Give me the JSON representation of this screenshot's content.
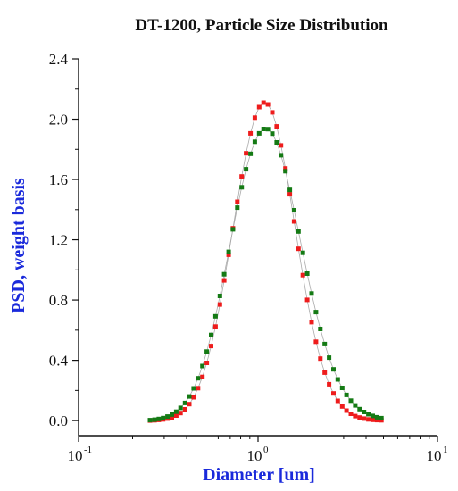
{
  "chart_data": {
    "type": "scatter",
    "title": "DT-1200, Particle Size Distribution",
    "xlabel": "Diameter [um]",
    "ylabel": "PSD, weight basis",
    "xscale": "log",
    "xlim": [
      0.1,
      10
    ],
    "ylim": [
      -0.1,
      2.4
    ],
    "x_ticks": [
      {
        "base": "10",
        "exponent": "-1",
        "value": 0.1
      },
      {
        "base": "10",
        "exponent": "0",
        "value": 1
      },
      {
        "base": "10",
        "exponent": "1",
        "value": 10
      }
    ],
    "y_ticks": [
      "0.0",
      "0.4",
      "0.8",
      "1.2",
      "1.6",
      "2.0",
      "2.4"
    ],
    "grid": false,
    "legend": "none",
    "colors": {
      "title": "#111111",
      "axis_label": "#1a2adb",
      "axis": "#111111"
    },
    "series": [
      {
        "color": "#ee1c1c",
        "x": [
          0.25,
          0.265,
          0.28,
          0.296,
          0.313,
          0.331,
          0.35,
          0.37,
          0.392,
          0.414,
          0.438,
          0.463,
          0.49,
          0.518,
          0.548,
          0.58,
          0.613,
          0.648,
          0.686,
          0.725,
          0.767,
          0.811,
          0.858,
          0.908,
          0.96,
          1.015,
          1.074,
          1.136,
          1.201,
          1.27,
          1.343,
          1.421,
          1.503,
          1.589,
          1.681,
          1.778,
          1.88,
          1.989,
          2.103,
          2.225,
          2.353,
          2.488,
          2.632,
          2.783,
          2.944,
          3.113,
          3.293,
          3.483,
          3.683,
          3.895,
          4.12,
          4.357,
          4.608,
          4.873
        ],
        "y": [
          0.0,
          0.002,
          0.004,
          0.008,
          0.013,
          0.021,
          0.033,
          0.05,
          0.075,
          0.109,
          0.155,
          0.215,
          0.29,
          0.383,
          0.495,
          0.624,
          0.77,
          0.93,
          1.1,
          1.276,
          1.452,
          1.62,
          1.774,
          1.906,
          2.01,
          2.08,
          2.11,
          2.098,
          2.045,
          1.952,
          1.826,
          1.673,
          1.502,
          1.322,
          1.14,
          0.965,
          0.801,
          0.653,
          0.523,
          0.411,
          0.318,
          0.241,
          0.18,
          0.131,
          0.094,
          0.066,
          0.045,
          0.03,
          0.02,
          0.013,
          0.008,
          0.005,
          0.003,
          0.002
        ]
      },
      {
        "color": "#147a14",
        "x": [
          0.25,
          0.265,
          0.28,
          0.296,
          0.313,
          0.331,
          0.35,
          0.37,
          0.392,
          0.414,
          0.438,
          0.463,
          0.49,
          0.518,
          0.548,
          0.58,
          0.613,
          0.648,
          0.686,
          0.725,
          0.767,
          0.811,
          0.858,
          0.908,
          0.96,
          1.015,
          1.074,
          1.136,
          1.201,
          1.27,
          1.343,
          1.421,
          1.503,
          1.589,
          1.681,
          1.778,
          1.88,
          1.989,
          2.103,
          2.225,
          2.353,
          2.488,
          2.632,
          2.783,
          2.944,
          3.113,
          3.293,
          3.483,
          3.683,
          3.895,
          4.12,
          4.357,
          4.608,
          4.873
        ],
        "y": [
          0.003,
          0.006,
          0.011,
          0.017,
          0.027,
          0.04,
          0.059,
          0.084,
          0.117,
          0.16,
          0.214,
          0.281,
          0.362,
          0.458,
          0.568,
          0.692,
          0.827,
          0.971,
          1.12,
          1.269,
          1.413,
          1.548,
          1.668,
          1.77,
          1.85,
          1.906,
          1.935,
          1.934,
          1.904,
          1.846,
          1.761,
          1.655,
          1.531,
          1.396,
          1.255,
          1.113,
          0.975,
          0.843,
          0.72,
          0.608,
          0.508,
          0.418,
          0.34,
          0.273,
          0.217,
          0.17,
          0.132,
          0.101,
          0.076,
          0.057,
          0.042,
          0.031,
          0.022,
          0.016
        ]
      }
    ]
  }
}
